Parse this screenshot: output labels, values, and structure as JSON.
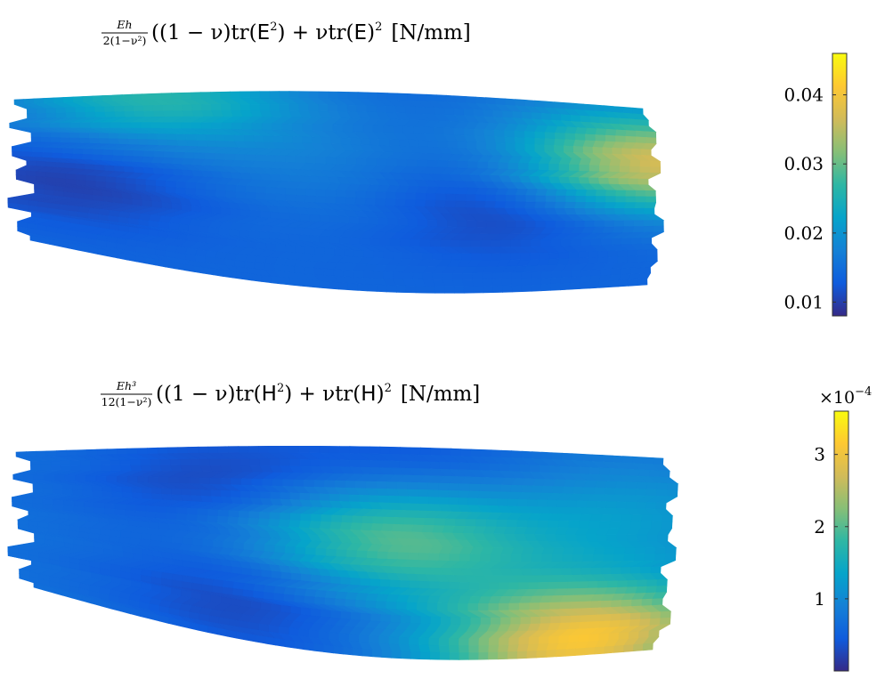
{
  "chart_data": [
    {
      "type": "heatmap",
      "title": {
        "frac_num": "Eh",
        "frac_den": "2(1−ν²)",
        "expr_a": "((1 − ν)tr(",
        "sym1": "E",
        "expr_b": ") + νtr(",
        "sym2": "E",
        "expr_c": ")",
        "unit": "[N/mm]"
      },
      "colorbar": {
        "limits": [
          0.008,
          0.046
        ],
        "ticks": [
          0.01,
          0.02,
          0.03,
          0.04
        ],
        "tick_labels": [
          "0.01",
          "0.02",
          "0.03",
          "0.04"
        ],
        "multiplier": ""
      },
      "field": {
        "base": 0.014,
        "features": [
          {
            "kind": "low",
            "cx": 0.78,
            "cy": 0.52,
            "value": 0.0085
          },
          {
            "kind": "low",
            "cx": 0.08,
            "cy": 0.55,
            "value": 0.01
          },
          {
            "kind": "high",
            "cx": 0.49,
            "cy": 0.4,
            "value": 0.017
          },
          {
            "kind": "high",
            "cx": 1.0,
            "cy": 0.32,
            "value": 0.038
          },
          {
            "kind": "high",
            "cx": 0.22,
            "cy": 0.02,
            "value": 0.026
          }
        ]
      }
    },
    {
      "type": "heatmap",
      "title": {
        "frac_num": "Eh³",
        "frac_den": "12(1−ν²)",
        "expr_a": "((1 − ν)tr(",
        "sym1": "H",
        "expr_b": ") + νtr(",
        "sym2": "H",
        "expr_c": ")",
        "unit": "[N/mm]"
      },
      "colorbar": {
        "limits": [
          0.0,
          3.6
        ],
        "ticks": [
          1,
          2,
          3
        ],
        "tick_labels": [
          "1",
          "2",
          "3"
        ],
        "multiplier": "×10"
      },
      "field": {
        "base": 0.7,
        "features": [
          {
            "kind": "high",
            "cx": 0.57,
            "cy": 0.43,
            "value": 2.1
          },
          {
            "kind": "high",
            "cx": 0.88,
            "cy": 0.92,
            "value": 3.1
          },
          {
            "kind": "high",
            "cx": 0.93,
            "cy": 0.3,
            "value": 1.2
          },
          {
            "kind": "low",
            "cx": 0.3,
            "cy": 0.2,
            "value": 0.25
          },
          {
            "kind": "low",
            "cx": 0.35,
            "cy": 0.8,
            "value": 0.25
          },
          {
            "kind": "low",
            "cx": 0.62,
            "cy": 0.1,
            "value": 0.3
          }
        ]
      }
    }
  ]
}
